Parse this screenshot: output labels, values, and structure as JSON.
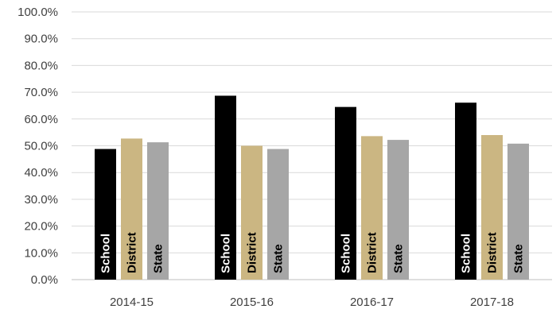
{
  "chart_data": {
    "type": "bar",
    "title": "",
    "xlabel": "",
    "ylabel": "",
    "ylim": [
      0,
      100
    ],
    "yticks": [
      "0.0%",
      "10.0%",
      "20.0%",
      "30.0%",
      "40.0%",
      "50.0%",
      "60.0%",
      "70.0%",
      "80.0%",
      "90.0%",
      "100.0%"
    ],
    "categories": [
      "2014-15",
      "2015-16",
      "2016-17",
      "2017-18"
    ],
    "series": [
      {
        "name": "School",
        "color": "#000000",
        "label_color": "#ffffff",
        "values": [
          48.8,
          68.7,
          64.5,
          66.1
        ]
      },
      {
        "name": "District",
        "color": "#cbb682",
        "label_color": "#000000",
        "values": [
          52.7,
          50.0,
          53.6,
          54.0
        ]
      },
      {
        "name": "State",
        "color": "#a6a6a6",
        "label_color": "#000000",
        "values": [
          51.3,
          48.8,
          52.2,
          50.8
        ]
      }
    ],
    "grid": true,
    "legend": "none (series names printed inside bars)"
  }
}
